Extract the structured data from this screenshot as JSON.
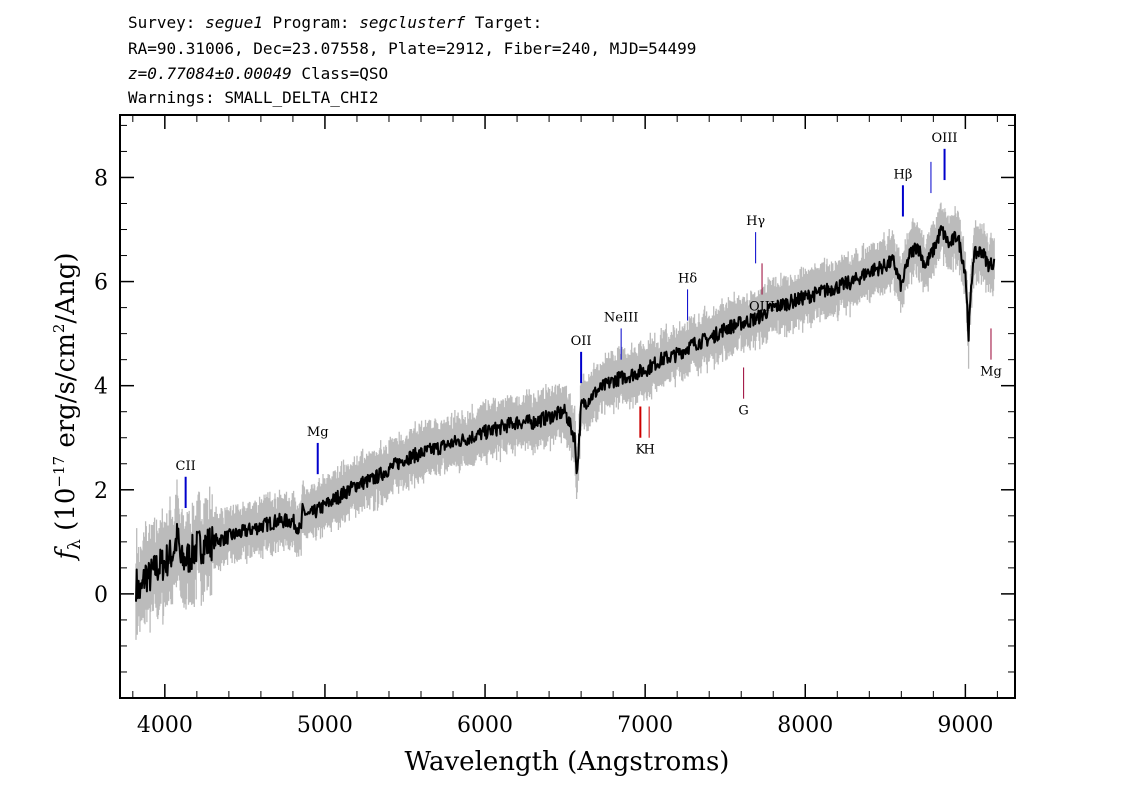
{
  "header": {
    "line1_a": "Survey: ",
    "line1_b": "segue1",
    "line1_c": " Program: ",
    "line1_d": "segclusterf",
    "line1_e": " Target:",
    "line2": "RA=90.31006, Dec=23.07558, Plate=2912, Fiber=240, MJD=54499",
    "line3_a": "z=0.77084±0.00049",
    "line3_b": " Class=QSO",
    "line4": "Warnings: SMALL_DELTA_CHI2"
  },
  "chart_data": {
    "type": "line",
    "xlabel": "Wavelength (Angstroms)",
    "ylabel_parts": {
      "f": "f",
      "sub": "λ",
      "open": " (10",
      "exp": "−17",
      "mid": " erg/s/cm",
      "exp2": "2",
      "close": "/Ang)"
    },
    "xlim": [
      3720,
      9310
    ],
    "ylim": [
      -2.0,
      9.2
    ],
    "x_ticks": [
      4000,
      5000,
      6000,
      7000,
      8000,
      9000
    ],
    "x_tick_labels": [
      "4000",
      "5000",
      "6000",
      "7000",
      "8000",
      "9000"
    ],
    "y_ticks": [
      0,
      2,
      4,
      6,
      8
    ],
    "y_tick_labels": [
      "0",
      "2",
      "4",
      "6",
      "8"
    ],
    "series": [
      {
        "role": "spectrum",
        "color": "#000000",
        "x": [
          3820,
          3850,
          3880,
          3900,
          3950,
          4000,
          4050,
          4080,
          4100,
          4150,
          4200,
          4300,
          4400,
          4500,
          4600,
          4700,
          4800,
          4850,
          4860,
          4900,
          5000,
          5100,
          5200,
          5300,
          5400,
          5500,
          5600,
          5700,
          5800,
          5900,
          6000,
          6100,
          6200,
          6300,
          6400,
          6500,
          6560,
          6575,
          6600,
          6700,
          6800,
          6900,
          7000,
          7100,
          7200,
          7300,
          7400,
          7500,
          7600,
          7700,
          7800,
          7900,
          8000,
          8100,
          8200,
          8300,
          8400,
          8500,
          8550,
          8600,
          8650,
          8700,
          8750,
          8800,
          8850,
          8900,
          8950,
          9000,
          9020,
          9050,
          9100,
          9150,
          9180
        ],
        "y": [
          0.2,
          0.0,
          0.4,
          0.3,
          0.5,
          0.6,
          0.8,
          1.1,
          0.6,
          0.7,
          0.9,
          1.0,
          1.1,
          1.2,
          1.3,
          1.4,
          1.4,
          1.2,
          1.6,
          1.5,
          1.7,
          1.9,
          2.1,
          2.2,
          2.4,
          2.6,
          2.7,
          2.8,
          2.9,
          3.0,
          3.1,
          3.2,
          3.3,
          3.3,
          3.4,
          3.5,
          3.0,
          2.3,
          3.6,
          3.9,
          4.1,
          4.2,
          4.3,
          4.5,
          4.6,
          4.8,
          4.9,
          5.1,
          5.2,
          5.3,
          5.5,
          5.6,
          5.7,
          5.8,
          5.9,
          6.0,
          6.2,
          6.3,
          6.4,
          5.9,
          6.5,
          6.7,
          6.3,
          6.6,
          7.0,
          6.7,
          6.9,
          6.2,
          5.0,
          6.5,
          6.6,
          6.3,
          6.4
        ]
      },
      {
        "role": "error-envelope",
        "color": "#bbbbbb",
        "half_width": 0.45
      }
    ],
    "line_markers": [
      {
        "label": "CII",
        "x": 4130,
        "y0": 1.65,
        "y1": 2.25,
        "color": "#0000cc",
        "width": 2
      },
      {
        "label": "Mg",
        "x": 4955,
        "y0": 2.3,
        "y1": 2.9,
        "color": "#0000cc",
        "width": 2
      },
      {
        "label": "OII",
        "x": 6600,
        "y0": 4.05,
        "y1": 4.65,
        "color": "#0000cc",
        "width": 2
      },
      {
        "label": "NeIII",
        "x": 6850,
        "y0": 4.5,
        "y1": 5.1,
        "color": "#0000cc",
        "width": 1
      },
      {
        "label": "Hδ",
        "x": 7265,
        "y0": 5.25,
        "y1": 5.85,
        "color": "#0000cc",
        "width": 1
      },
      {
        "label": "Hγ",
        "x": 7690,
        "y0": 6.35,
        "y1": 6.95,
        "color": "#0000cc",
        "width": 1
      },
      {
        "label": "OIII",
        "x": 7730,
        "y0": 5.75,
        "y1": 6.35,
        "color": "#990033",
        "width": 1
      },
      {
        "label": "Hβ",
        "x": 8610,
        "y0": 7.25,
        "y1": 7.85,
        "color": "#0000cc",
        "width": 2
      },
      {
        "label": "",
        "x": 8785,
        "y0": 7.7,
        "y1": 8.3,
        "color": "#0000cc",
        "width": 1
      },
      {
        "label": "OIII",
        "x": 8870,
        "y0": 7.95,
        "y1": 8.55,
        "color": "#0000cc",
        "width": 2
      },
      {
        "label": "K",
        "x": 6970,
        "y0": 3.0,
        "y1": 3.6,
        "color": "#cc0000",
        "width": 2
      },
      {
        "label": "H",
        "x": 7025,
        "y0": 3.0,
        "y1": 3.6,
        "color": "#cc0000",
        "width": 1
      },
      {
        "label": "G",
        "x": 7615,
        "y0": 3.75,
        "y1": 4.35,
        "color": "#990033",
        "width": 1
      },
      {
        "label": "Mg",
        "x": 9160,
        "y0": 4.5,
        "y1": 5.1,
        "color": "#990033",
        "width": 1
      }
    ]
  }
}
